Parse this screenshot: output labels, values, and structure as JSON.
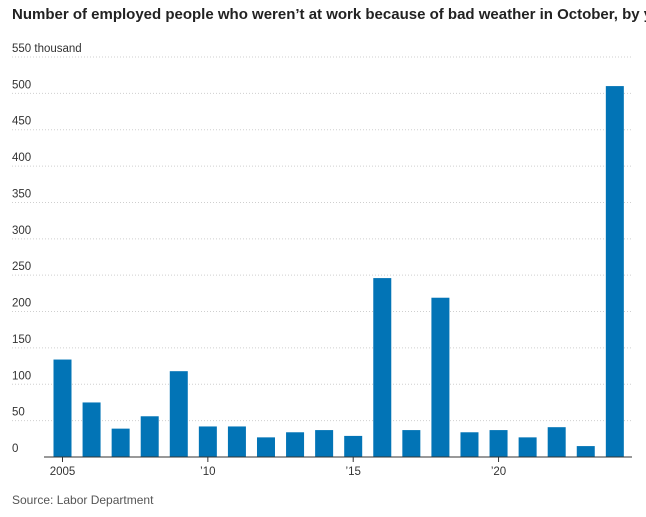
{
  "chart_data": {
    "type": "bar",
    "title": "Number of employed people who weren’t at work because of bad weather in October, by year",
    "source": "Source: Labor Department",
    "x": [
      2005,
      2006,
      2007,
      2008,
      2009,
      2010,
      2011,
      2012,
      2013,
      2014,
      2015,
      2016,
      2017,
      2018,
      2019,
      2020,
      2021,
      2022,
      2023,
      2024
    ],
    "values": [
      134,
      75,
      39,
      56,
      118,
      42,
      42,
      27,
      34,
      37,
      29,
      246,
      37,
      219,
      34,
      37,
      27,
      41,
      15,
      510
    ],
    "y_ticks": [
      0,
      50,
      100,
      150,
      200,
      250,
      300,
      350,
      400,
      450,
      500,
      550
    ],
    "y_tick_labels": [
      "0",
      "50",
      "100",
      "150",
      "200",
      "250",
      "300",
      "350",
      "400",
      "450",
      "500",
      "550 thousand"
    ],
    "x_ticks": [
      2005,
      2010,
      2015,
      2020
    ],
    "x_tick_labels": [
      "2005",
      "’10",
      "’15",
      "’20"
    ],
    "ylim": [
      0,
      550
    ],
    "color": "#0274b6"
  }
}
